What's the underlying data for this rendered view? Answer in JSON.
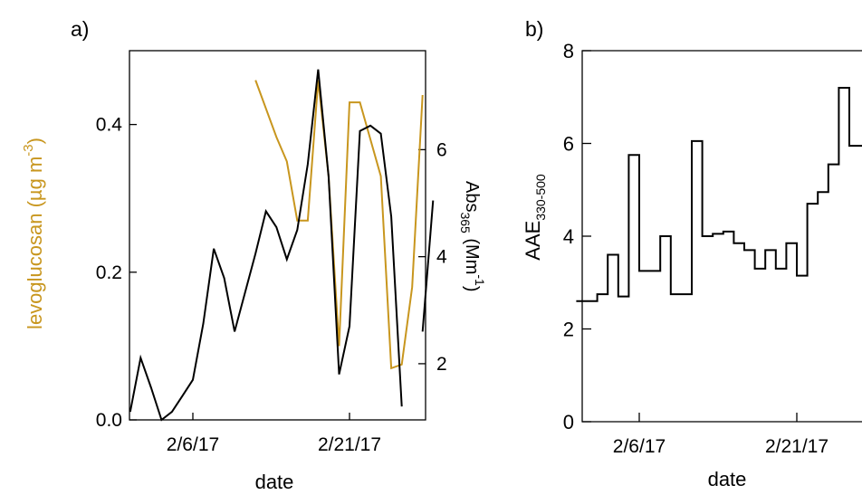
{
  "panels": {
    "a": {
      "label": "a)"
    },
    "b": {
      "label": "b)"
    }
  },
  "colors": {
    "levoglucosan": "#c8961e",
    "absorbance": "#000000",
    "axes": "#000000"
  },
  "chart_data": [
    {
      "id": "a",
      "type": "line",
      "xlabel": "date",
      "x_ticks": [
        "2/6/17",
        "2/21/17"
      ],
      "ylabel_left": {
        "main": "levoglucosan (µg m",
        "sup": "-3",
        "close": ")"
      },
      "ylabel_right": {
        "main": "Abs",
        "sub": "365",
        "unit": " (Mm",
        "sup": "-1",
        "close": ")"
      },
      "ylim_left": [
        0,
        0.5
      ],
      "yticks_left": [
        0.0,
        0.2,
        0.4
      ],
      "ytick_labels_left": [
        "0.0",
        "0.2",
        "0.4"
      ],
      "ylim_right": [
        0.95,
        7.85
      ],
      "yticks_right": [
        2,
        4,
        6
      ],
      "ytick_labels_right": [
        "2",
        "4",
        "6"
      ],
      "series": [
        {
          "axis": "left",
          "segments": [
            [
              [
                "2/12/17",
                0.46
              ],
              [
                "2/14/17",
                0.383
              ],
              [
                "2/15/17",
                0.35
              ],
              [
                "2/16/17",
                0.27
              ],
              [
                "2/17/17",
                0.27
              ],
              [
                "2/18/17",
                0.46
              ],
              [
                "2/19/17",
                0.33
              ],
              [
                "2/20/17",
                0.1
              ],
              [
                "2/21/17",
                0.43
              ],
              [
                "2/22/17",
                0.43
              ],
              [
                "2/24/17",
                0.33
              ],
              [
                "2/25/17",
                0.07
              ],
              [
                "2/26/17",
                0.075
              ],
              [
                "2/27/17",
                0.18
              ],
              [
                "2/28/17",
                0.44
              ]
            ]
          ]
        },
        {
          "axis": "right",
          "segments": [
            [
              [
                "1/31/17",
                1.1
              ],
              [
                "2/1/17",
                2.11
              ],
              [
                "2/2/17",
                1.55
              ],
              [
                "2/3/17",
                0.95
              ],
              [
                "2/4/17",
                1.1
              ],
              [
                "2/5/17",
                1.4
              ],
              [
                "2/6/17",
                1.7
              ],
              [
                "2/7/17",
                2.75
              ],
              [
                "2/8/17",
                4.15
              ],
              [
                "2/9/17",
                3.6
              ],
              [
                "2/10/17",
                2.6
              ],
              [
                "2/12/17",
                4.06
              ],
              [
                "2/13/17",
                4.85
              ],
              [
                "2/14/17",
                4.55
              ],
              [
                "2/15/17",
                3.95
              ],
              [
                "2/16/17",
                4.5
              ],
              [
                "2/17/17",
                5.73
              ],
              [
                "2/18/17",
                7.5
              ],
              [
                "2/19/17",
                5.5
              ],
              [
                "2/20/17",
                1.8
              ],
              [
                "2/21/17",
                2.7
              ],
              [
                "2/22/17",
                6.35
              ],
              [
                "2/23/17",
                6.45
              ],
              [
                "2/24/17",
                6.3
              ],
              [
                "2/25/17",
                4.75
              ],
              [
                "2/26/17",
                1.2
              ]
            ],
            [
              [
                "2/28/17",
                2.6
              ],
              [
                "3/1/17",
                5.05
              ]
            ]
          ]
        }
      ]
    },
    {
      "id": "b",
      "type": "line",
      "step": true,
      "xlabel": "date",
      "x_ticks": [
        "2/6/17",
        "2/21/17"
      ],
      "ylabel": {
        "main": "AAE",
        "sub": "330-500"
      },
      "ylim": [
        0,
        8
      ],
      "yticks": [
        0,
        2,
        4,
        6,
        8
      ],
      "ytick_labels": [
        "0",
        "2",
        "4",
        "6",
        "8"
      ],
      "series": [
        {
          "values": [
            [
              "1/31/17",
              2.6
            ],
            [
              "2/2/17",
              2.75
            ],
            [
              "2/3/17",
              3.6
            ],
            [
              "2/4/17",
              2.7
            ],
            [
              "2/5/17",
              5.75
            ],
            [
              "2/6/17",
              3.25
            ],
            [
              "2/8/17",
              4.0
            ],
            [
              "2/9/17",
              2.75
            ],
            [
              "2/10/17",
              2.75
            ],
            [
              "2/11/17",
              6.05
            ],
            [
              "2/12/17",
              4.0
            ],
            [
              "2/13/17",
              4.05
            ],
            [
              "2/14/17",
              4.1
            ],
            [
              "2/15/17",
              3.85
            ],
            [
              "2/16/17",
              3.7
            ],
            [
              "2/17/17",
              3.3
            ],
            [
              "2/18/17",
              3.7
            ],
            [
              "2/19/17",
              3.3
            ],
            [
              "2/20/17",
              3.85
            ],
            [
              "2/21/17",
              3.15
            ],
            [
              "2/22/17",
              4.7
            ],
            [
              "2/23/17",
              4.95
            ],
            [
              "2/24/17",
              5.55
            ],
            [
              "2/25/17",
              7.2
            ],
            [
              "2/26/17",
              5.95
            ],
            [
              "2/27/17",
              5.95
            ]
          ]
        }
      ]
    }
  ]
}
